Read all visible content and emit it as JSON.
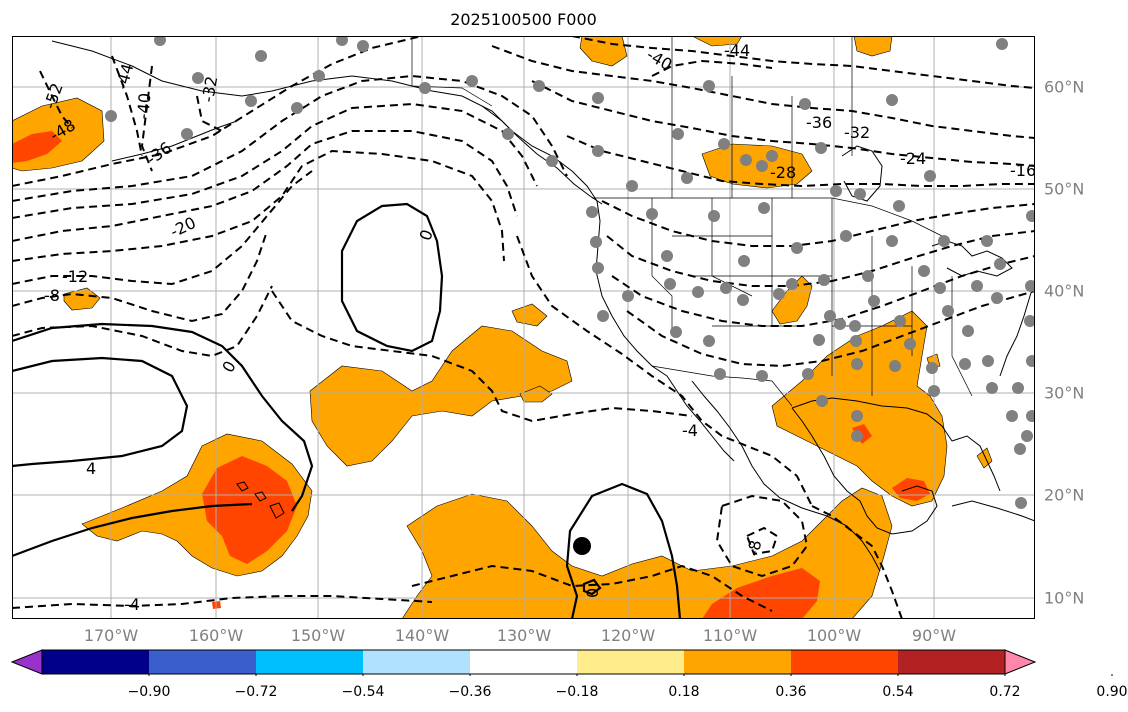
{
  "title": "2025100500 F000",
  "lon_labels": [
    "170°W",
    "160°W",
    "150°W",
    "140°W",
    "130°W",
    "120°W",
    "110°W",
    "100°W",
    "90°W"
  ],
  "lat_labels": [
    "60°N",
    "50°N",
    "40°N",
    "30°N",
    "20°N",
    "10°N"
  ],
  "contour_labels": [
    "-52",
    "-48",
    "-44",
    "-40",
    "-36",
    "-32",
    "-20",
    "-12",
    "-8",
    "0",
    "0",
    "-4",
    "4",
    "-4",
    "-8",
    "-40",
    "-44",
    "-36",
    "-32",
    "-28",
    "-24",
    "-16",
    "0"
  ],
  "colorbar": {
    "ticks": [
      "−0.90",
      "−0.72",
      "−0.54",
      "−0.36",
      "−0.18",
      "0.18",
      "0.36",
      "0.54",
      "0.72",
      "0.90"
    ],
    "colors": [
      "#9932cc",
      "#00008b",
      "#3a5fcd",
      "#00bfff",
      "#b0e2ff",
      "#ffffff",
      "#ffec8b",
      "#ffa500",
      "#ff4500",
      "#b22222",
      "#ff88aa"
    ]
  },
  "colors": {
    "fill_036": "#ffa500",
    "fill_054": "#ff4500",
    "station": "#808080",
    "grid": "#b0b0b0"
  }
}
